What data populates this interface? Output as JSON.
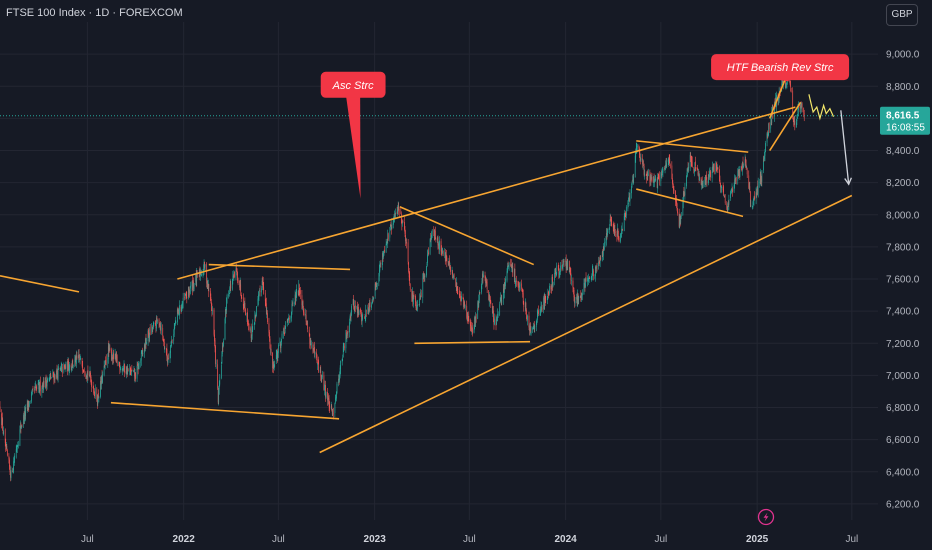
{
  "header": {
    "title": "FTSE 100 Index · 1D · FOREXCOM",
    "currency": "GBP"
  },
  "price_tag": {
    "price": "8,616.5",
    "countdown": "16:08:55"
  },
  "annotations": {
    "asc": "Asc Strc",
    "htf": "HTF Bearish Rev Strc"
  },
  "colors": {
    "background": "#161a25",
    "grid": "#232632",
    "up": "#26a69a",
    "down": "#ef5350",
    "trend": "#f7a531",
    "callout": "#f23645",
    "projection": "#f2e66a",
    "arrow": "#d1d4dc",
    "price_tag": "#26a69a"
  },
  "chart_data": {
    "type": "candlestick",
    "title": "FTSE 100 Index · 1D · FOREXCOM",
    "ylim": [
      6100,
      9200
    ],
    "yticks": [
      "6,200.0",
      "6,400.0",
      "6,600.0",
      "6,800.0",
      "7,000.0",
      "7,200.0",
      "7,400.0",
      "7,600.0",
      "7,800.0",
      "8,000.0",
      "8,200.0",
      "8,400.0",
      "8,600.0",
      "8,800.0",
      "9,000.0"
    ],
    "ytick_values": [
      6200,
      6400,
      6600,
      6800,
      7000,
      7200,
      7400,
      7600,
      7800,
      8000,
      8200,
      8400,
      8600,
      8800,
      9000
    ],
    "xticks": [
      {
        "label": "Jul",
        "date": "2021-07-01",
        "bold": false
      },
      {
        "label": "2022",
        "date": "2022-01-01",
        "bold": true
      },
      {
        "label": "Jul",
        "date": "2022-07-01",
        "bold": false
      },
      {
        "label": "2023",
        "date": "2023-01-01",
        "bold": true
      },
      {
        "label": "Jul",
        "date": "2023-07-01",
        "bold": false
      },
      {
        "label": "2024",
        "date": "2024-01-01",
        "bold": true
      },
      {
        "label": "Jul",
        "date": "2024-07-01",
        "bold": false
      },
      {
        "label": "2025",
        "date": "2025-01-01",
        "bold": true
      },
      {
        "label": "Jul",
        "date": "2025-07-01",
        "bold": false
      }
    ],
    "xrange": [
      "2021-01-15",
      "2025-08-20"
    ],
    "last_price": 8616.5,
    "price_anchors": [
      [
        "2021-01-15",
        6800
      ],
      [
        "2021-01-25",
        6550
      ],
      [
        "2021-02-05",
        6380
      ],
      [
        "2021-02-25",
        6700
      ],
      [
        "2021-03-20",
        6900
      ],
      [
        "2021-04-20",
        6980
      ],
      [
        "2021-05-20",
        7050
      ],
      [
        "2021-06-15",
        7100
      ],
      [
        "2021-07-05",
        7000
      ],
      [
        "2021-07-20",
        6850
      ],
      [
        "2021-08-10",
        7150
      ],
      [
        "2021-09-05",
        7050
      ],
      [
        "2021-10-01",
        7000
      ],
      [
        "2021-10-25",
        7250
      ],
      [
        "2021-11-15",
        7350
      ],
      [
        "2021-12-01",
        7100
      ],
      [
        "2021-12-20",
        7380
      ],
      [
        "2022-01-15",
        7550
      ],
      [
        "2022-02-10",
        7680
      ],
      [
        "2022-02-25",
        7400
      ],
      [
        "2022-03-08",
        6850
      ],
      [
        "2022-03-25",
        7500
      ],
      [
        "2022-04-12",
        7650
      ],
      [
        "2022-05-10",
        7250
      ],
      [
        "2022-06-01",
        7600
      ],
      [
        "2022-06-20",
        7050
      ],
      [
        "2022-07-10",
        7250
      ],
      [
        "2022-08-10",
        7550
      ],
      [
        "2022-09-01",
        7200
      ],
      [
        "2022-09-25",
        6950
      ],
      [
        "2022-10-12",
        6750
      ],
      [
        "2022-10-30",
        7100
      ],
      [
        "2022-11-20",
        7450
      ],
      [
        "2022-12-10",
        7350
      ],
      [
        "2022-12-30",
        7500
      ],
      [
        "2023-01-20",
        7800
      ],
      [
        "2023-02-15",
        8050
      ],
      [
        "2023-02-28",
        7900
      ],
      [
        "2023-03-12",
        7500
      ],
      [
        "2023-03-25",
        7400
      ],
      [
        "2023-04-20",
        7900
      ],
      [
        "2023-05-15",
        7750
      ],
      [
        "2023-06-01",
        7600
      ],
      [
        "2023-06-20",
        7450
      ],
      [
        "2023-07-07",
        7250
      ],
      [
        "2023-07-28",
        7650
      ],
      [
        "2023-08-20",
        7300
      ],
      [
        "2023-09-15",
        7700
      ],
      [
        "2023-10-10",
        7500
      ],
      [
        "2023-10-26",
        7280
      ],
      [
        "2023-11-20",
        7450
      ],
      [
        "2023-12-15",
        7650
      ],
      [
        "2024-01-05",
        7700
      ],
      [
        "2024-01-20",
        7450
      ],
      [
        "2024-02-10",
        7600
      ],
      [
        "2024-03-01",
        7650
      ],
      [
        "2024-03-25",
        7950
      ],
      [
        "2024-04-15",
        7850
      ],
      [
        "2024-05-10",
        8250
      ],
      [
        "2024-05-15",
        8450
      ],
      [
        "2024-06-01",
        8250
      ],
      [
        "2024-06-25",
        8200
      ],
      [
        "2024-07-15",
        8350
      ],
      [
        "2024-08-05",
        7950
      ],
      [
        "2024-08-25",
        8350
      ],
      [
        "2024-09-20",
        8200
      ],
      [
        "2024-10-15",
        8300
      ],
      [
        "2024-11-05",
        8050
      ],
      [
        "2024-11-25",
        8250
      ],
      [
        "2024-12-10",
        8350
      ],
      [
        "2024-12-20",
        8050
      ],
      [
        "2025-01-10",
        8250
      ],
      [
        "2025-01-20",
        8500
      ],
      [
        "2025-02-05",
        8700
      ],
      [
        "2025-02-18",
        8800
      ],
      [
        "2025-03-04",
        8850
      ],
      [
        "2025-03-12",
        8550
      ],
      [
        "2025-03-25",
        8700
      ],
      [
        "2025-04-01",
        8600
      ]
    ],
    "trendlines": [
      {
        "from": [
          "2021-01-15",
          7620
        ],
        "to": [
          "2021-06-15",
          7520
        ]
      },
      {
        "from": [
          "2021-12-20",
          7600
        ],
        "to": [
          "2025-03-15",
          8670
        ]
      },
      {
        "from": [
          "2022-09-18",
          6520
        ],
        "to": [
          "2025-07-01",
          8120
        ]
      },
      {
        "from": [
          "2021-08-15",
          6830
        ],
        "to": [
          "2022-10-25",
          6730
        ]
      },
      {
        "from": [
          "2022-02-18",
          7690
        ],
        "to": [
          "2022-11-15",
          7660
        ]
      },
      {
        "from": [
          "2023-02-18",
          8050
        ],
        "to": [
          "2023-11-01",
          7690
        ]
      },
      {
        "from": [
          "2023-03-18",
          7200
        ],
        "to": [
          "2023-10-25",
          7210
        ]
      },
      {
        "from": [
          "2024-05-15",
          8460
        ],
        "to": [
          "2024-12-15",
          8390
        ]
      },
      {
        "from": [
          "2024-05-15",
          8160
        ],
        "to": [
          "2024-12-05",
          7990
        ]
      },
      {
        "from": [
          "2025-01-25",
          8400
        ],
        "to": [
          "2025-03-25",
          8700
        ]
      },
      {
        "from": [
          "2025-01-25",
          8600
        ],
        "to": [
          "2025-03-05",
          8920
        ]
      }
    ],
    "projection": [
      [
        "2025-04-10",
        8750
      ],
      [
        "2025-04-18",
        8640
      ],
      [
        "2025-04-25",
        8670
      ],
      [
        "2025-05-01",
        8600
      ],
      [
        "2025-05-08",
        8680
      ],
      [
        "2025-05-13",
        8630
      ],
      [
        "2025-05-20",
        8660
      ],
      [
        "2025-05-27",
        8610
      ]
    ],
    "forecast_arrow": {
      "from": [
        "2025-06-10",
        8650
      ],
      "to": [
        "2025-06-25",
        8190
      ]
    },
    "callouts": [
      {
        "key": "asc",
        "box": [
          "2022-09-20",
          8890
        ],
        "tip": [
          "2022-12-05",
          8100
        ]
      },
      {
        "key": "htf",
        "box": [
          "2024-10-05",
          9000
        ],
        "tip": [
          "2025-03-05",
          8830
        ]
      }
    ]
  }
}
